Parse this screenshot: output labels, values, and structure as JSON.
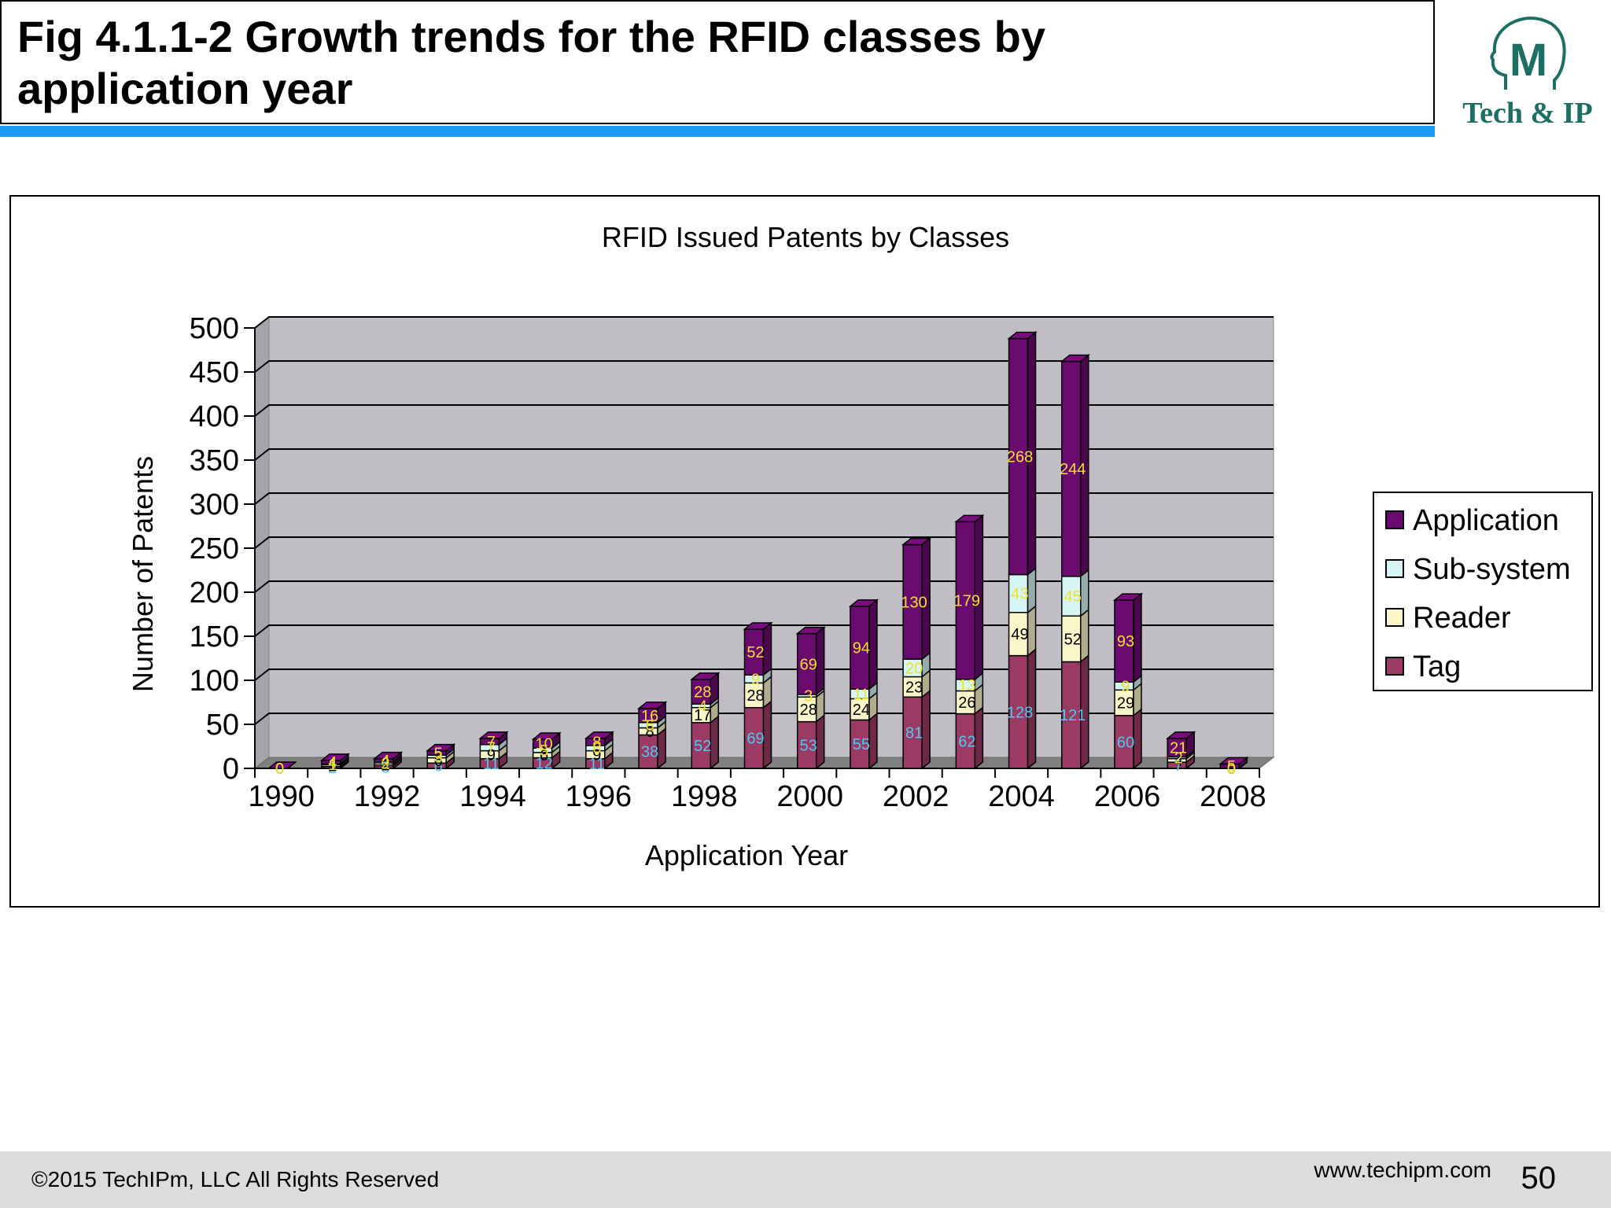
{
  "slide": {
    "title_line1": "Fig 4.1.1-2 Growth trends for the RFID classes  by",
    "title_line2": "application year",
    "logo_text": "Tech & IP",
    "logo_letter": "M",
    "footer_copyright": "©2015 TechIPm, LLC All Rights Reserved",
    "footer_url": "www.techipm.com",
    "page_number": "50"
  },
  "colors": {
    "application": "#6a0a6e",
    "subsystem": "#d6f6f6",
    "reader": "#fbf6c8",
    "tag": "#9b3a64",
    "plot_bg": "#c0bec4",
    "accent_bar": "#1a9af0"
  },
  "chart_data": {
    "type": "bar",
    "stacked": true,
    "title": "RFID Issued Patents by Classes",
    "xlabel": "Application Year",
    "ylabel": "Number of Patents",
    "ylim": [
      0,
      500
    ],
    "yticks": [
      0,
      50,
      100,
      150,
      200,
      250,
      300,
      350,
      400,
      450,
      500
    ],
    "xtick_labels": [
      "1990",
      "1992",
      "1994",
      "1996",
      "1998",
      "2000",
      "2002",
      "2004",
      "2006",
      "2008"
    ],
    "categories": [
      "1990",
      "1991",
      "1992",
      "1993",
      "1994",
      "1995",
      "1996",
      "1997",
      "1998",
      "1999",
      "2000",
      "2001",
      "2002",
      "2003",
      "2004",
      "2005",
      "2006",
      "2007",
      "2008"
    ],
    "series": [
      {
        "name": "Tag",
        "values": [
          0,
          2,
          3,
          6,
          11,
          12,
          11,
          38,
          52,
          69,
          53,
          55,
          81,
          62,
          128,
          121,
          60,
          7,
          0
        ]
      },
      {
        "name": "Reader",
        "values": [
          0,
          2,
          2,
          6,
          9,
          6,
          9,
          8,
          17,
          28,
          28,
          24,
          23,
          26,
          49,
          52,
          29,
          4,
          0
        ]
      },
      {
        "name": "Sub-system",
        "values": [
          0,
          1,
          2,
          3,
          7,
          5,
          6,
          6,
          4,
          9,
          3,
          11,
          20,
          13,
          43,
          45,
          9,
          2,
          0
        ]
      },
      {
        "name": "Application",
        "values": [
          0,
          4,
          4,
          5,
          7,
          10,
          8,
          16,
          28,
          52,
          69,
          94,
          130,
          179,
          268,
          244,
          93,
          21,
          5
        ]
      }
    ],
    "legend": [
      "Application",
      "Sub-system",
      "Reader",
      "Tag"
    ],
    "legend_position": "right",
    "grid": true
  }
}
